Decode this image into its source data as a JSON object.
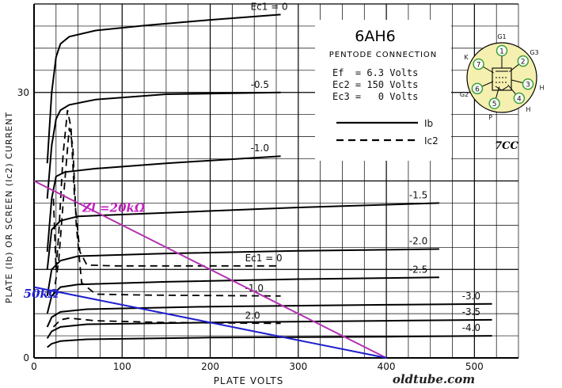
{
  "chart_data": {
    "type": "line",
    "tube": "6AH6",
    "connection": "PENTODE CONNECTION",
    "conditions": [
      "Ef  = 6.3 Volts",
      "Ec2 = 150 Volts",
      "Ec3 =   0 Volts"
    ],
    "legend": [
      {
        "label": "Ib",
        "style": "solid"
      },
      {
        "label": "Ic2",
        "style": "dashed"
      }
    ],
    "base": "7CC",
    "xlabel": "PLATE VOLTS",
    "ylabel": "PLATE (Ib) OR SCREEN (Ic2) CURRENT",
    "xlim": [
      0,
      600
    ],
    "ylim": [
      0,
      40
    ],
    "xticks": [
      "0",
      "100",
      "200",
      "300",
      "400",
      "500"
    ],
    "yticks": [
      "0",
      "30"
    ],
    "watermark": "oldtube.com",
    "plate_series": [
      {
        "label": "Ec1 = 0",
        "points": [
          [
            15,
            22
          ],
          [
            20,
            30
          ],
          [
            25,
            34
          ],
          [
            30,
            35.5
          ],
          [
            40,
            36.3
          ],
          [
            70,
            37
          ],
          [
            130,
            37.6
          ],
          [
            200,
            38.2
          ],
          [
            280,
            38.8
          ]
        ]
      },
      {
        "label": "-0.5",
        "points": [
          [
            15,
            18
          ],
          [
            20,
            24
          ],
          [
            25,
            27
          ],
          [
            30,
            28
          ],
          [
            40,
            28.6
          ],
          [
            70,
            29.2
          ],
          [
            150,
            29.8
          ],
          [
            280,
            30
          ]
        ]
      },
      {
        "label": "-1.0",
        "points": [
          [
            15,
            12
          ],
          [
            20,
            18
          ],
          [
            25,
            20.5
          ],
          [
            35,
            21
          ],
          [
            70,
            21.4
          ],
          [
            150,
            22
          ],
          [
            280,
            22.8
          ]
        ]
      },
      {
        "label": "-1.5",
        "points": [
          [
            15,
            10
          ],
          [
            20,
            14.5
          ],
          [
            30,
            15.5
          ],
          [
            50,
            16
          ],
          [
            150,
            16.4
          ],
          [
            300,
            17
          ],
          [
            460,
            17.5
          ]
        ]
      },
      {
        "label": "-2.0",
        "points": [
          [
            15,
            7
          ],
          [
            20,
            10
          ],
          [
            30,
            11
          ],
          [
            50,
            11.5
          ],
          [
            150,
            11.8
          ],
          [
            300,
            12.1
          ],
          [
            460,
            12.3
          ]
        ]
      },
      {
        "label": "-2.5",
        "points": [
          [
            15,
            5
          ],
          [
            20,
            7
          ],
          [
            30,
            8
          ],
          [
            50,
            8.3
          ],
          [
            150,
            8.6
          ],
          [
            300,
            8.9
          ],
          [
            460,
            9.1
          ]
        ]
      },
      {
        "label": "-3.0",
        "points": [
          [
            15,
            3.5
          ],
          [
            20,
            4.6
          ],
          [
            30,
            5.2
          ],
          [
            60,
            5.5
          ],
          [
            200,
            5.8
          ],
          [
            400,
            6
          ],
          [
            520,
            6.1
          ]
        ]
      },
      {
        "label": "-3.5",
        "points": [
          [
            15,
            2.2
          ],
          [
            20,
            3
          ],
          [
            30,
            3.5
          ],
          [
            60,
            3.8
          ],
          [
            200,
            4
          ],
          [
            400,
            4.2
          ],
          [
            520,
            4.3
          ]
        ]
      },
      {
        "label": "-4.0",
        "points": [
          [
            15,
            1.2
          ],
          [
            20,
            1.6
          ],
          [
            30,
            1.9
          ],
          [
            60,
            2.1
          ],
          [
            200,
            2.3
          ],
          [
            400,
            2.4
          ],
          [
            520,
            2.5
          ]
        ]
      }
    ],
    "screen_series": [
      {
        "label": "Ec1 = 0",
        "points": [
          [
            22,
            18
          ],
          [
            25,
            10
          ],
          [
            28,
            14
          ],
          [
            33,
            23
          ],
          [
            38,
            28
          ],
          [
            42,
            26
          ],
          [
            46,
            18
          ],
          [
            52,
            12
          ],
          [
            60,
            10.5
          ],
          [
            90,
            10.4
          ],
          [
            180,
            10.4
          ],
          [
            280,
            10.4
          ]
        ]
      },
      {
        "label": "-1.0",
        "points": [
          [
            22,
            7
          ],
          [
            28,
            11
          ],
          [
            35,
            20
          ],
          [
            40,
            26
          ],
          [
            44,
            24
          ],
          [
            48,
            15
          ],
          [
            54,
            8.5
          ],
          [
            70,
            7.2
          ],
          [
            130,
            7.1
          ],
          [
            280,
            7
          ]
        ]
      },
      {
        "label": "2.0",
        "points": [
          [
            22,
            3.5
          ],
          [
            30,
            4.3
          ],
          [
            40,
            4.5
          ],
          [
            70,
            4.2
          ],
          [
            150,
            4
          ],
          [
            280,
            3.9
          ]
        ]
      }
    ],
    "load_lines": [
      {
        "label": "Zl =20kΩ",
        "points": [
          [
            0,
            20
          ],
          [
            400,
            0
          ]
        ]
      },
      {
        "label": "50kΩ",
        "points": [
          [
            0,
            8
          ],
          [
            400,
            0
          ]
        ]
      }
    ],
    "colors": {
      "grid": "#000000",
      "curves": "#000000",
      "load_20k": "#b233b2",
      "load_50k": "#1f1fcc",
      "label_20k": "#c020c0",
      "label_50k": "#2020d8",
      "base_fill": "#f5efb0",
      "base_pin": "#3aa03a"
    },
    "base_pins": [
      {
        "num": "1",
        "name": "G1"
      },
      {
        "num": "2",
        "name": "G3"
      },
      {
        "num": "3",
        "name": "H"
      },
      {
        "num": "4",
        "name": "H"
      },
      {
        "num": "5",
        "name": "P"
      },
      {
        "num": "6",
        "name": "G2"
      },
      {
        "num": "7",
        "name": "K"
      }
    ]
  }
}
